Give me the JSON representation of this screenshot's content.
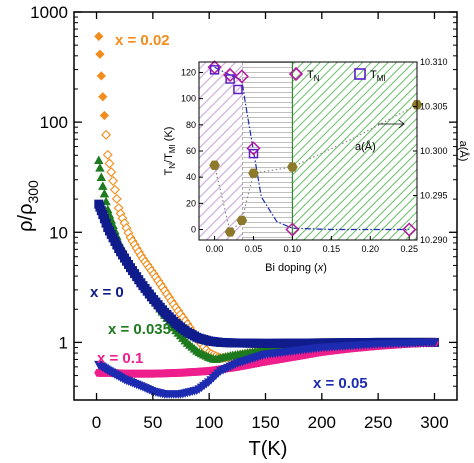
{
  "chart_data": [
    {
      "type": "scatter",
      "xlabel": "T(K)",
      "ylabel_main": "ρ/ρ",
      "ylabel_sub": "300",
      "xlim": [
        -20,
        320
      ],
      "ylim": [
        0.3,
        1000
      ],
      "y_scale": "log",
      "x_ticks": [
        "0",
        "50",
        "100",
        "150",
        "200",
        "250",
        "300"
      ],
      "y_ticks": [
        "1",
        "10",
        "100",
        "1000"
      ],
      "grid": false,
      "colors": {
        "x = 0.02": "#f28c1c",
        "x = 0.035": "#1e7a1e",
        "x = 0": "#101c8c",
        "x = 0.1": "#ee1e8c",
        "x = 0.05": "#1c2bb0"
      },
      "series": [
        {
          "name": "x = 0.02",
          "label": "x = 0.02",
          "marker": "diamond",
          "color": "#f28c1c",
          "x": [
            2,
            5,
            10,
            20,
            30,
            40,
            50,
            60,
            70,
            80,
            90,
            100,
            110,
            120,
            130,
            150,
            175,
            200,
            225,
            250,
            275,
            300
          ],
          "y": [
            600,
            200,
            50,
            16,
            9,
            6,
            4.3,
            3.0,
            2.1,
            1.5,
            1.05,
            0.8,
            0.72,
            0.74,
            0.78,
            0.84,
            0.88,
            0.92,
            0.95,
            0.97,
            0.99,
            1.0
          ]
        },
        {
          "name": "x = 0.035",
          "label": "x = 0.035",
          "marker": "triangle",
          "color": "#1e7a1e",
          "x": [
            2,
            5,
            10,
            20,
            30,
            40,
            50,
            60,
            70,
            80,
            90,
            100,
            105,
            110,
            120,
            150,
            200,
            250,
            300
          ],
          "y": [
            45,
            28,
            16,
            8,
            5.2,
            3.5,
            2.5,
            1.8,
            1.3,
            1.0,
            0.82,
            0.73,
            0.7,
            0.72,
            0.76,
            0.85,
            0.93,
            0.98,
            1.0
          ]
        },
        {
          "name": "x = 0",
          "label": "x = 0",
          "marker": "square",
          "color": "#101c8c",
          "x": [
            2,
            5,
            10,
            20,
            30,
            40,
            50,
            60,
            70,
            80,
            90,
            100,
            110,
            120,
            150,
            200,
            250,
            300
          ],
          "y": [
            18,
            15,
            11,
            7,
            4.8,
            3.4,
            2.5,
            1.9,
            1.5,
            1.25,
            1.1,
            1.03,
            1.0,
            0.99,
            0.98,
            0.99,
            1.0,
            1.0
          ]
        },
        {
          "name": "x = 0.1",
          "label": "x = 0.1",
          "marker": "hexagon",
          "color": "#ee1e8c",
          "x": [
            2,
            10,
            25,
            50,
            75,
            100,
            125,
            150,
            175,
            200,
            225,
            250,
            275,
            300
          ],
          "y": [
            0.53,
            0.53,
            0.52,
            0.52,
            0.53,
            0.55,
            0.6,
            0.67,
            0.74,
            0.82,
            0.88,
            0.93,
            0.97,
            1.0
          ]
        },
        {
          "name": "x = 0.05",
          "label": "x = 0.05",
          "marker": "triangle-down",
          "color": "#1c2bb0",
          "x": [
            2,
            10,
            25,
            40,
            50,
            60,
            75,
            90,
            100,
            110,
            125,
            150,
            200,
            250,
            300
          ],
          "y": [
            0.63,
            0.56,
            0.46,
            0.4,
            0.36,
            0.34,
            0.34,
            0.37,
            0.44,
            0.55,
            0.65,
            0.78,
            0.9,
            0.97,
            1.0
          ]
        }
      ]
    },
    {
      "type": "scatter",
      "inset": true,
      "xlabel_main": "Bi doping (",
      "xlabel_var": "x",
      "xlabel_end": ")",
      "ylabel_left_main": "T",
      "ylabel_left_sub1": "N",
      "ylabel_left_mid": "/T",
      "ylabel_left_sub2": "MI",
      "ylabel_left_end": " (K)",
      "ylabel_right": "a(Å)",
      "xlim": [
        -0.02,
        0.26
      ],
      "ylim_left": [
        -8,
        128
      ],
      "ylim_right": [
        10.29,
        10.31
      ],
      "x_ticks": [
        "0.00",
        "0.05",
        "0.10",
        "0.15",
        "0.20",
        "0.25"
      ],
      "y_ticks_left": [
        "0",
        "20",
        "40",
        "60",
        "80",
        "100",
        "120"
      ],
      "y_ticks_right": [
        "10.290",
        "10.295",
        "10.300",
        "10.305",
        "10.310"
      ],
      "legend": [
        {
          "label_main": "T",
          "label_sub": "N",
          "marker": "diamond-open",
          "color": "#b5179e"
        },
        {
          "label_main": "T",
          "label_sub": "MI",
          "marker": "square-open",
          "color": "#5a1fc8"
        }
      ],
      "annotation": "a(Å)",
      "regions": [
        {
          "from": -0.02,
          "to": 0.036,
          "color": "#c7a3d6",
          "pattern": "diagonal"
        },
        {
          "from": 0.036,
          "to": 0.1,
          "color": "#b4b4b4",
          "pattern": "horizontal"
        },
        {
          "from": 0.1,
          "to": 0.26,
          "color": "#4cb44c",
          "pattern": "diagonal"
        }
      ],
      "series": [
        {
          "name": "T_N",
          "marker": "diamond-open",
          "color": "#b5179e",
          "x": [
            0.0,
            0.02,
            0.035,
            0.05,
            0.1,
            0.25
          ],
          "y": [
            124,
            118,
            117,
            62,
            0,
            0
          ]
        },
        {
          "name": "T_MI",
          "marker": "square-open",
          "color": "#5a1fc8",
          "x": [
            0.0,
            0.02,
            0.03,
            0.05
          ],
          "y": [
            122,
            115,
            107,
            58
          ]
        },
        {
          "name": "a(Å)",
          "marker": "hexagon-filled",
          "color": "#8c7a2a",
          "axis": "right",
          "x": [
            0.0,
            0.02,
            0.035,
            0.05,
            0.1,
            0.26
          ],
          "y": [
            10.2984,
            10.2909,
            10.2922,
            10.2975,
            10.2982,
            10.3052
          ]
        }
      ],
      "guides": [
        {
          "color": "#1c2bb0",
          "style": "dash-dot",
          "x": [
            0.0,
            0.02,
            0.035,
            0.04,
            0.05,
            0.06,
            0.08,
            0.1,
            0.15,
            0.25
          ],
          "y": [
            124,
            118,
            114,
            95,
            60,
            25,
            6,
            1,
            0,
            0
          ]
        },
        {
          "color": "#888888",
          "style": "dotted",
          "axis": "right",
          "x": [
            0.0,
            0.02,
            0.035,
            0.05,
            0.1,
            0.18,
            0.26
          ],
          "y": [
            10.2984,
            10.2909,
            10.2922,
            10.2975,
            10.2982,
            10.3015,
            10.3052
          ]
        }
      ]
    }
  ]
}
